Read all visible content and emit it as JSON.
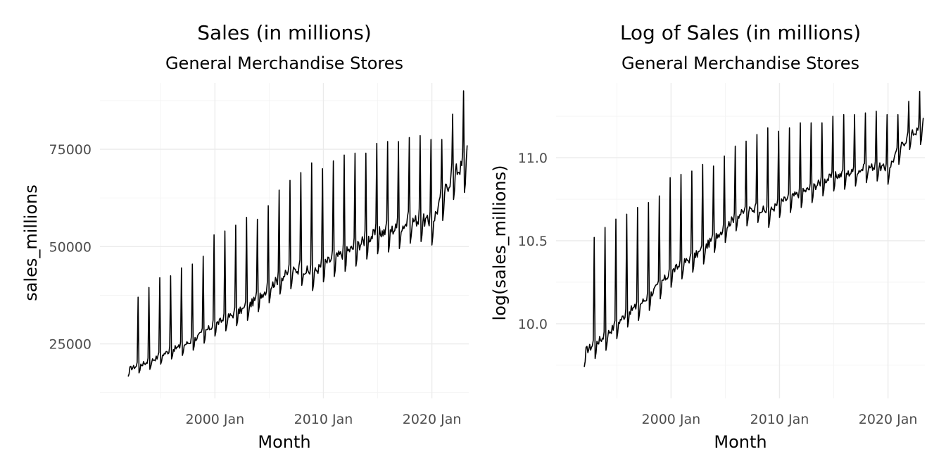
{
  "chart_data": [
    {
      "type": "line",
      "title": "Sales (in millions)",
      "subtitle": "General Merchandise Stores",
      "xlabel": "Month",
      "ylabel": "sales_millions",
      "x_ticks": [
        "2000 Jan",
        "2010 Jan",
        "2020 Jan"
      ],
      "x_tick_values": [
        2000,
        2010,
        2020
      ],
      "y_ticks": [
        "25000",
        "50000",
        "75000"
      ],
      "y_tick_values": [
        25000,
        50000,
        75000
      ],
      "xlim": [
        1989.4,
        2023.4
      ],
      "ylim": [
        11000,
        92000
      ],
      "series": [
        {
          "x": [
            1992.0,
            1993.0,
            1994.0,
            1995.0,
            1996.0,
            1997.0,
            1998.0,
            1999.0,
            2000.0,
            2001.0,
            2002.0,
            2003.0,
            2004.0,
            2005.0,
            2006.0,
            2007.0,
            2008.0,
            2009.0,
            2010.0,
            2011.0,
            2012.0,
            2013.0,
            2014.0,
            2015.0,
            2016.0,
            2017.0,
            2018.0,
            2019.0,
            2020.0,
            2021.0,
            2022.0,
            2023.0
          ],
          "december_peaks": [
            37000,
            39500,
            42000,
            42500,
            44500,
            45500,
            47500,
            53000,
            54000,
            55500,
            57500,
            57000,
            60500,
            64500,
            67000,
            69000,
            71500,
            70000,
            72000,
            73500,
            74000,
            74000,
            76500,
            77000,
            77000,
            78000,
            78500,
            77500,
            77500,
            84000,
            90000,
            0
          ],
          "trend_base": [
            18500,
            19500,
            20500,
            22000,
            23500,
            24500,
            26000,
            28000,
            30000,
            31500,
            33000,
            34500,
            37000,
            39500,
            42000,
            43500,
            44500,
            43000,
            45500,
            47000,
            48500,
            50000,
            52000,
            53500,
            54000,
            55000,
            56500,
            57000,
            56000,
            63000,
            69000,
            71000
          ]
        }
      ]
    },
    {
      "type": "line",
      "title": "Log of Sales (in millions)",
      "subtitle": "General Merchandise Stores",
      "xlabel": "Month",
      "ylabel": "log(sales_millions)",
      "x_ticks": [
        "2000 Jan",
        "2010 Jan",
        "2020 Jan"
      ],
      "x_tick_values": [
        2000,
        2010,
        2020
      ],
      "y_ticks": [
        "10.0",
        "10.5",
        "11.0"
      ],
      "y_tick_values": [
        10.0,
        10.5,
        11.0
      ],
      "xlim": [
        1989.4,
        2023.4
      ],
      "ylim": [
        9.55,
        11.45
      ],
      "series": [
        {
          "x": [
            1992.0,
            1993.0,
            1994.0,
            1995.0,
            1996.0,
            1997.0,
            1998.0,
            1999.0,
            2000.0,
            2001.0,
            2002.0,
            2003.0,
            2004.0,
            2005.0,
            2006.0,
            2007.0,
            2008.0,
            2009.0,
            2010.0,
            2011.0,
            2012.0,
            2013.0,
            2014.0,
            2015.0,
            2016.0,
            2017.0,
            2018.0,
            2019.0,
            2020.0,
            2021.0,
            2022.0,
            2023.0
          ],
          "december_peaks": [
            10.52,
            10.58,
            10.63,
            10.66,
            10.7,
            10.73,
            10.77,
            10.88,
            10.9,
            10.92,
            10.96,
            10.95,
            11.01,
            11.07,
            11.1,
            11.14,
            11.18,
            11.16,
            11.18,
            11.21,
            11.21,
            11.21,
            11.25,
            11.26,
            11.26,
            11.27,
            11.28,
            11.26,
            11.26,
            11.34,
            11.4,
            0
          ],
          "trend_base": [
            9.83,
            9.88,
            9.93,
            10.0,
            10.07,
            10.11,
            10.17,
            10.24,
            10.31,
            10.36,
            10.4,
            10.45,
            10.52,
            10.58,
            10.65,
            10.68,
            10.7,
            10.67,
            10.73,
            10.76,
            10.79,
            10.82,
            10.86,
            10.89,
            10.9,
            10.92,
            10.94,
            10.95,
            10.93,
            11.05,
            11.14,
            11.17
          ]
        }
      ]
    }
  ]
}
